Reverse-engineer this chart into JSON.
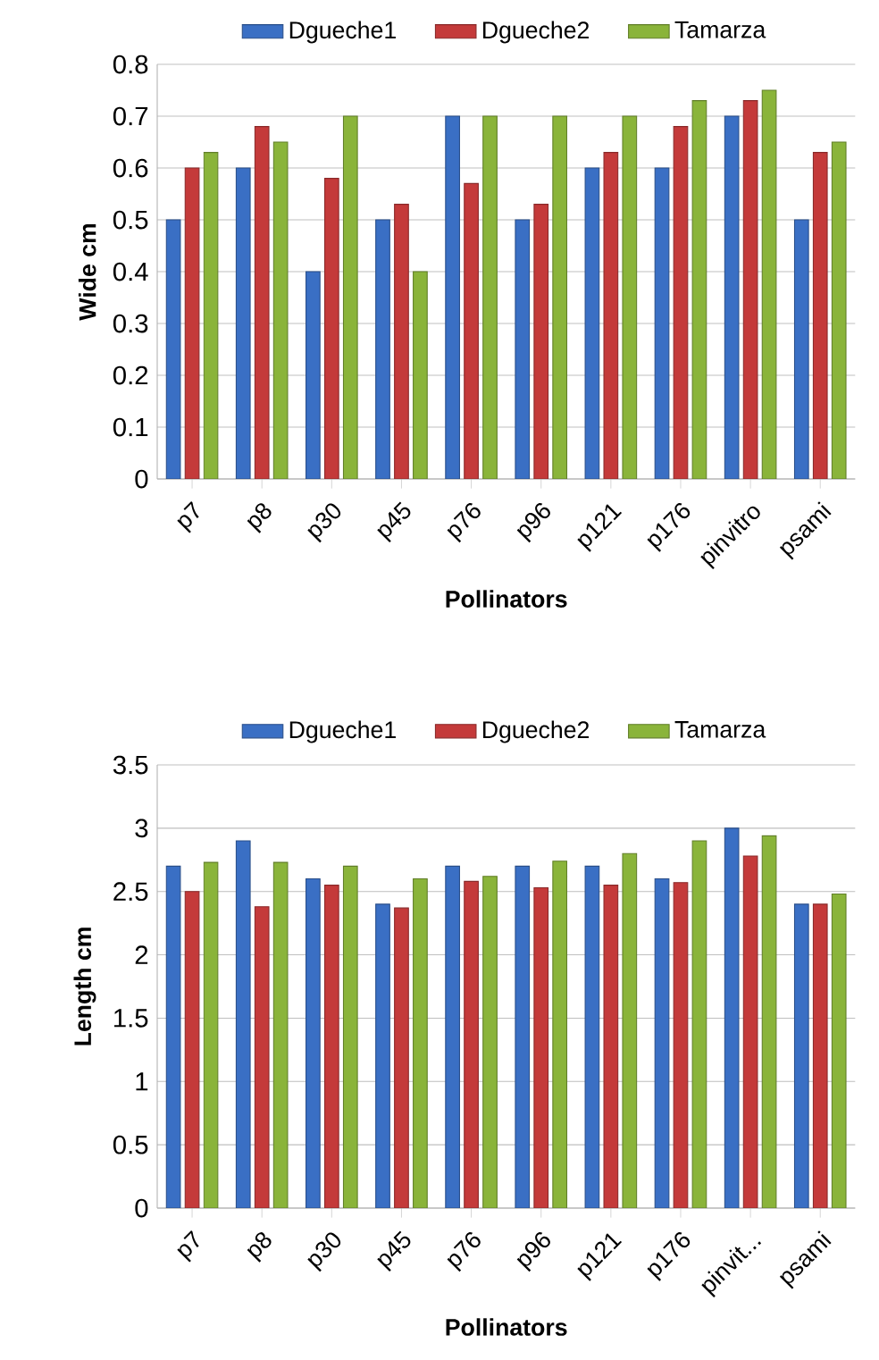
{
  "chart_data": [
    {
      "type": "bar",
      "categories": [
        "p7",
        "p8",
        "p30",
        "p45",
        "p76",
        "p96",
        "p121",
        "p176",
        "pinvitro",
        "psami"
      ],
      "xlabel": "Pollinators",
      "ylabel": "Wide  cm",
      "ylim": [
        0,
        0.8
      ],
      "yticks": [
        0,
        0.1,
        0.2,
        0.3,
        0.4,
        0.5,
        0.6,
        0.7,
        0.8
      ],
      "grid": "y",
      "legend": "top",
      "series": [
        {
          "name": "Dgueche1",
          "color": "#3a6fc4",
          "values": [
            0.5,
            0.6,
            0.4,
            0.5,
            0.7,
            0.5,
            0.6,
            0.6,
            0.7,
            0.5
          ]
        },
        {
          "name": "Dgueche2",
          "color": "#c43a3a",
          "values": [
            0.6,
            0.68,
            0.58,
            0.53,
            0.57,
            0.53,
            0.63,
            0.68,
            0.73,
            0.63
          ]
        },
        {
          "name": "Tamarza",
          "color": "#8ab43a",
          "values": [
            0.63,
            0.65,
            0.7,
            0.4,
            0.7,
            0.7,
            0.7,
            0.73,
            0.75,
            0.65
          ]
        }
      ]
    },
    {
      "type": "bar",
      "categories": [
        "p7",
        "p8",
        "p30",
        "p45",
        "p76",
        "p96",
        "p121",
        "p176",
        "pinvit...",
        "psami"
      ],
      "xlabel": "Pollinators",
      "ylabel": "Length cm",
      "ylim": [
        0,
        3.5
      ],
      "yticks": [
        0,
        0.5,
        1,
        1.5,
        2,
        2.5,
        3,
        3.5
      ],
      "grid": "y",
      "legend": "top",
      "series": [
        {
          "name": "Dgueche1",
          "color": "#3a6fc4",
          "values": [
            2.7,
            2.9,
            2.6,
            2.4,
            2.7,
            2.7,
            2.7,
            2.6,
            3.0,
            2.4
          ]
        },
        {
          "name": "Dgueche2",
          "color": "#c43a3a",
          "values": [
            2.5,
            2.38,
            2.55,
            2.37,
            2.58,
            2.53,
            2.55,
            2.57,
            2.78,
            2.4
          ]
        },
        {
          "name": "Tamarza",
          "color": "#8ab43a",
          "values": [
            2.73,
            2.73,
            2.7,
            2.6,
            2.62,
            2.74,
            2.8,
            2.9,
            2.94,
            2.48
          ]
        }
      ]
    }
  ]
}
